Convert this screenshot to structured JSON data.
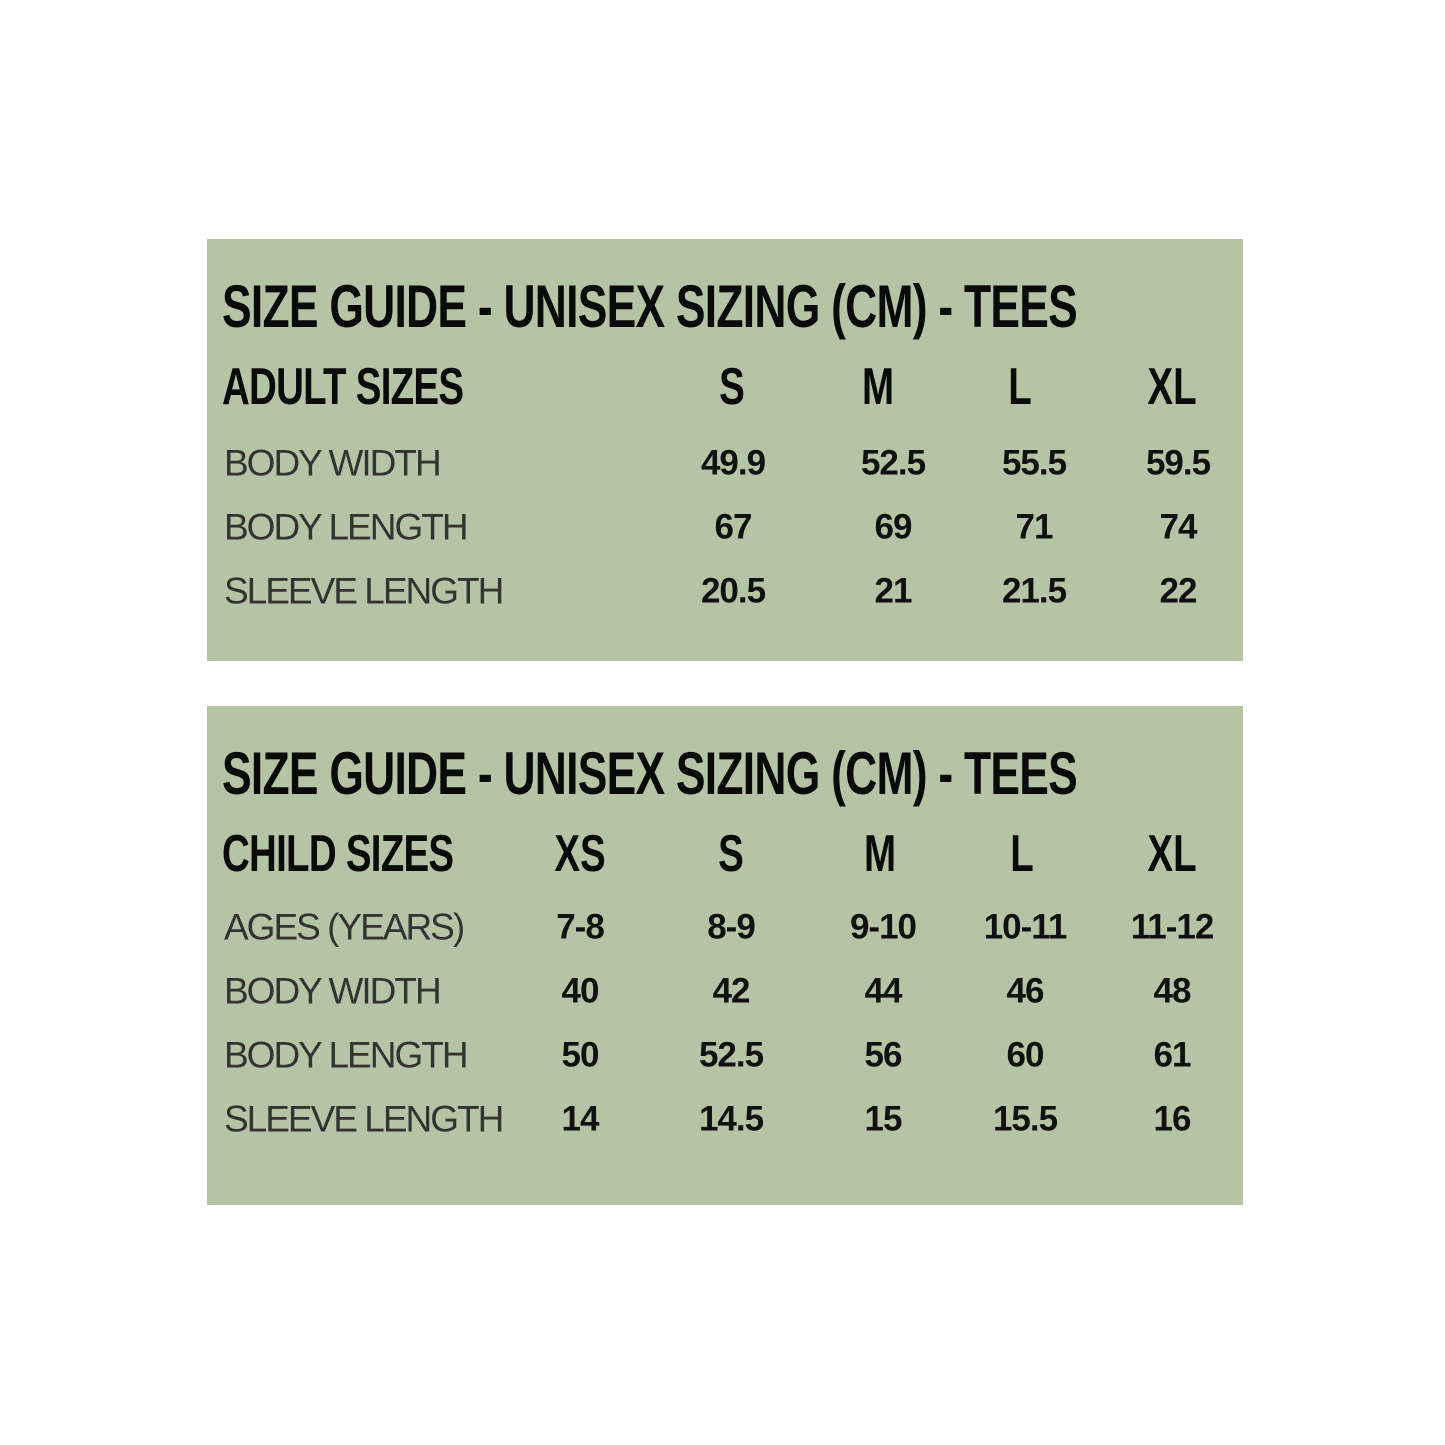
{
  "tables": [
    {
      "title": "SIZE GUIDE - UNISEX SIZING (CM) - TEES",
      "group_label": "ADULT SIZES",
      "columns": [
        "S",
        "M",
        "L",
        "XL"
      ],
      "rows": [
        {
          "label": "BODY WIDTH",
          "values": [
            "49.9",
            "52.5",
            "55.5",
            "59.5"
          ]
        },
        {
          "label": "BODY LENGTH",
          "values": [
            "67",
            "69",
            "71",
            "74"
          ]
        },
        {
          "label": "SLEEVE LENGTH",
          "values": [
            "20.5",
            "21",
            "21.5",
            "22"
          ]
        }
      ]
    },
    {
      "title": "SIZE GUIDE - UNISEX SIZING (CM) - TEES",
      "group_label": "CHILD SIZES",
      "columns": [
        "XS",
        "S",
        "M",
        "L",
        "XL"
      ],
      "rows": [
        {
          "label": "AGES (YEARS)",
          "values": [
            "7-8",
            "8-9",
            "9-10",
            "10-11",
            "11-12"
          ]
        },
        {
          "label": "BODY WIDTH",
          "values": [
            "40",
            "42",
            "44",
            "46",
            "48"
          ]
        },
        {
          "label": "BODY LENGTH",
          "values": [
            "50",
            "52.5",
            "56",
            "60",
            "61"
          ]
        },
        {
          "label": "SLEEVE LENGTH",
          "values": [
            "14",
            "14.5",
            "15",
            "15.5",
            "16"
          ]
        }
      ]
    }
  ],
  "colors": {
    "panel": "#b5c4a5",
    "text": "#0a0a0a"
  }
}
